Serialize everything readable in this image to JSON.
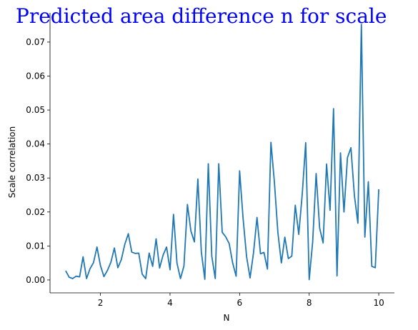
{
  "chart_data": {
    "type": "line",
    "title": "Predicted area difference n for scale",
    "title_color": "#0000ff",
    "xlabel": "N",
    "ylabel": "Scale correlation",
    "xlim": [
      0.55,
      10.45
    ],
    "ylim": [
      -0.0038,
      0.0786
    ],
    "x_ticks": [
      2,
      4,
      6,
      8,
      10
    ],
    "x_tick_labels": [
      "2",
      "4",
      "6",
      "8",
      "10"
    ],
    "y_ticks": [
      0.0,
      0.01,
      0.02,
      0.03,
      0.04,
      0.05,
      0.06,
      0.07
    ],
    "y_tick_labels": [
      "0.00",
      "0.01",
      "0.02",
      "0.03",
      "0.04",
      "0.05",
      "0.06",
      "0.07"
    ],
    "grid": false,
    "spines": [
      "left",
      "bottom"
    ],
    "series": [
      {
        "color": "#1f77b4",
        "x": [
          1.0,
          1.1,
          1.2,
          1.3,
          1.4,
          1.5,
          1.6,
          1.7,
          1.8,
          1.9,
          2.0,
          2.1,
          2.2,
          2.3,
          2.4,
          2.5,
          2.6,
          2.7,
          2.8,
          2.9,
          3.0,
          3.1,
          3.2,
          3.3,
          3.4,
          3.5,
          3.6,
          3.7,
          3.8,
          3.9,
          4.0,
          4.1,
          4.2,
          4.3,
          4.4,
          4.5,
          4.6,
          4.7,
          4.8,
          4.9,
          5.0,
          5.1,
          5.2,
          5.3,
          5.4,
          5.5,
          5.6,
          5.7,
          5.8,
          5.9,
          6.0,
          6.1,
          6.2,
          6.3,
          6.4,
          6.5,
          6.6,
          6.7,
          6.8,
          6.9,
          7.0,
          7.1,
          7.2,
          7.3,
          7.4,
          7.5,
          7.6,
          7.7,
          7.8,
          7.9,
          8.0,
          8.1,
          8.2,
          8.3,
          8.4,
          8.5,
          8.6,
          8.7,
          8.8,
          8.9,
          9.0,
          9.1,
          9.2,
          9.3,
          9.4,
          9.5,
          9.6,
          9.7,
          9.8,
          9.9,
          10.0
        ],
        "y": [
          0.0027,
          0.0008,
          0.0004,
          0.0011,
          0.0009,
          0.0068,
          0.0004,
          0.0033,
          0.0051,
          0.0097,
          0.0042,
          0.001,
          0.0028,
          0.0052,
          0.0094,
          0.0036,
          0.006,
          0.0105,
          0.0136,
          0.0082,
          0.0078,
          0.0079,
          0.0017,
          0.0004,
          0.0079,
          0.004,
          0.0121,
          0.0035,
          0.0073,
          0.0097,
          0.003,
          0.0193,
          0.0049,
          0.0004,
          0.0041,
          0.0222,
          0.0144,
          0.0112,
          0.0297,
          0.0082,
          0.0002,
          0.0342,
          0.007,
          0.0004,
          0.0342,
          0.014,
          0.0127,
          0.0107,
          0.005,
          0.0011,
          0.0321,
          0.0181,
          0.0069,
          0.0006,
          0.008,
          0.0184,
          0.0077,
          0.0081,
          0.0032,
          0.0405,
          0.0288,
          0.014,
          0.005,
          0.0126,
          0.0063,
          0.007,
          0.022,
          0.0134,
          0.0252,
          0.0404,
          0.0001,
          0.0112,
          0.0313,
          0.0153,
          0.0109,
          0.0341,
          0.0205,
          0.0504,
          0.0012,
          0.0374,
          0.02,
          0.036,
          0.0389,
          0.0248,
          0.0167,
          0.0752,
          0.0126,
          0.0289,
          0.004,
          0.0036,
          0.0267
        ]
      }
    ]
  }
}
